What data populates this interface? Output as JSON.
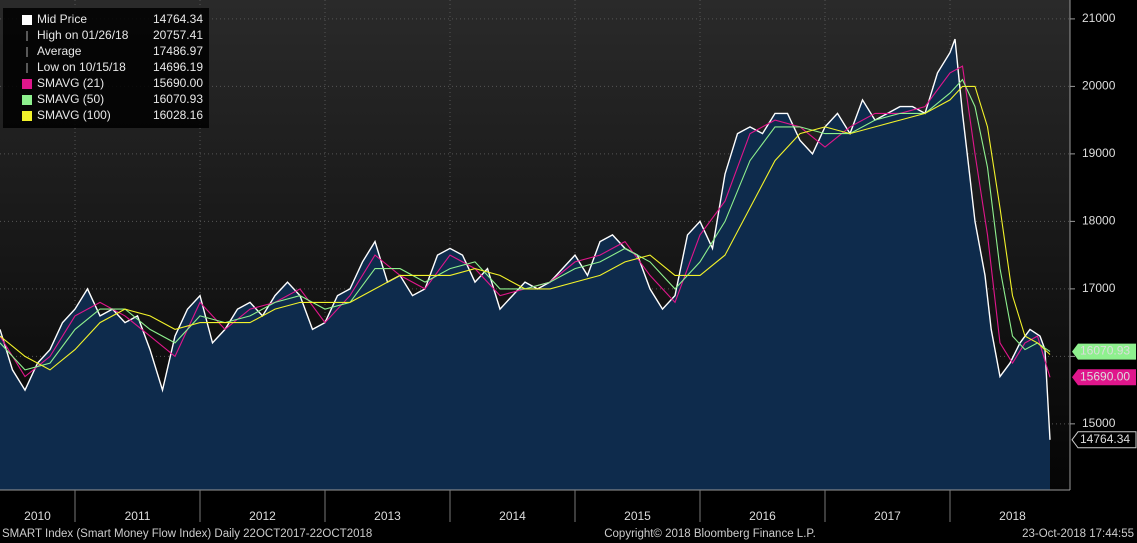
{
  "chart_data": {
    "type": "line",
    "legend": [
      {
        "label": "Mid Price",
        "value": "14764.34",
        "color": "#ffffff"
      },
      {
        "label": "High on 01/26/18",
        "value": "20757.41"
      },
      {
        "label": "Average",
        "value": "17486.97"
      },
      {
        "label": "Low on 10/15/18",
        "value": "14696.19"
      },
      {
        "label": "SMAVG (21)",
        "value": "15690.00",
        "color": "#e0168c"
      },
      {
        "label": "SMAVG (50)",
        "value": "16070.93",
        "color": "#8ef08e"
      },
      {
        "label": "SMAVG (100)",
        "value": "16028.16",
        "color": "#f2f22a"
      }
    ],
    "series": [
      {
        "name": "Mid Price",
        "color": "#ffffff",
        "area": "#0e2b4c",
        "x": [
          2010.4,
          2010.5,
          2010.6,
          2010.7,
          2010.8,
          2010.9,
          2011.0,
          2011.1,
          2011.2,
          2011.3,
          2011.4,
          2011.5,
          2011.6,
          2011.7,
          2011.8,
          2011.9,
          2012.0,
          2012.1,
          2012.2,
          2012.3,
          2012.4,
          2012.5,
          2012.6,
          2012.7,
          2012.8,
          2012.9,
          2013.0,
          2013.1,
          2013.2,
          2013.3,
          2013.4,
          2013.5,
          2013.6,
          2013.7,
          2013.8,
          2013.9,
          2014.0,
          2014.1,
          2014.2,
          2014.3,
          2014.4,
          2014.5,
          2014.6,
          2014.7,
          2014.8,
          2014.9,
          2015.0,
          2015.1,
          2015.2,
          2015.3,
          2015.4,
          2015.5,
          2015.6,
          2015.7,
          2015.8,
          2015.9,
          2016.0,
          2016.1,
          2016.2,
          2016.3,
          2016.4,
          2016.5,
          2016.6,
          2016.7,
          2016.8,
          2016.9,
          2017.0,
          2017.1,
          2017.2,
          2017.3,
          2017.4,
          2017.5,
          2017.6,
          2017.7,
          2017.8,
          2017.9,
          2018.0,
          2018.04,
          2018.1,
          2018.15,
          2018.2,
          2018.28,
          2018.33,
          2018.4,
          2018.48,
          2018.56,
          2018.64,
          2018.72,
          2018.76,
          2018.8
        ],
        "values": [
          16400,
          15800,
          15500,
          15900,
          16100,
          16500,
          16700,
          17000,
          16600,
          16700,
          16500,
          16600,
          16100,
          15500,
          16300,
          16700,
          16900,
          16200,
          16400,
          16700,
          16800,
          16600,
          16900,
          17100,
          16900,
          16400,
          16500,
          16900,
          17000,
          17400,
          17700,
          17100,
          17200,
          16900,
          17000,
          17500,
          17600,
          17500,
          17100,
          17300,
          16700,
          16900,
          17100,
          17000,
          17100,
          17300,
          17500,
          17200,
          17700,
          17800,
          17600,
          17500,
          17000,
          16700,
          16900,
          17800,
          18000,
          17600,
          18700,
          19300,
          19400,
          19300,
          19600,
          19600,
          19200,
          19000,
          19400,
          19600,
          19300,
          19800,
          19500,
          19600,
          19700,
          19700,
          19600,
          20200,
          20500,
          20700,
          19600,
          18800,
          18000,
          17200,
          16400,
          15700,
          15900,
          16200,
          16400,
          16300,
          16100,
          14764
        ]
      },
      {
        "name": "SMAVG (21)",
        "color": "#e0168c",
        "x": [
          2010.4,
          2010.6,
          2010.8,
          2011.0,
          2011.2,
          2011.4,
          2011.6,
          2011.8,
          2012.0,
          2012.2,
          2012.4,
          2012.6,
          2012.8,
          2013.0,
          2013.2,
          2013.4,
          2013.6,
          2013.8,
          2014.0,
          2014.2,
          2014.4,
          2014.6,
          2014.8,
          2015.0,
          2015.2,
          2015.4,
          2015.6,
          2015.8,
          2016.0,
          2016.2,
          2016.4,
          2016.6,
          2016.8,
          2017.0,
          2017.2,
          2017.4,
          2017.6,
          2017.8,
          2018.0,
          2018.1,
          2018.2,
          2018.3,
          2018.4,
          2018.5,
          2018.6,
          2018.7,
          2018.8
        ],
        "values": [
          16300,
          15700,
          16000,
          16600,
          16800,
          16600,
          16300,
          16000,
          16800,
          16400,
          16700,
          16800,
          17000,
          16500,
          16900,
          17500,
          17200,
          17000,
          17500,
          17300,
          16900,
          17000,
          17100,
          17400,
          17500,
          17700,
          17200,
          16800,
          17800,
          18300,
          19300,
          19500,
          19400,
          19100,
          19400,
          19600,
          19600,
          19700,
          20200,
          20300,
          19000,
          17800,
          16200,
          15900,
          16200,
          16300,
          15690
        ]
      },
      {
        "name": "SMAVG (50)",
        "color": "#8ef08e",
        "x": [
          2010.4,
          2010.6,
          2010.8,
          2011.0,
          2011.2,
          2011.4,
          2011.6,
          2011.8,
          2012.0,
          2012.2,
          2012.4,
          2012.6,
          2012.8,
          2013.0,
          2013.2,
          2013.4,
          2013.6,
          2013.8,
          2014.0,
          2014.2,
          2014.4,
          2014.6,
          2014.8,
          2015.0,
          2015.2,
          2015.4,
          2015.6,
          2015.8,
          2016.0,
          2016.2,
          2016.4,
          2016.6,
          2016.8,
          2017.0,
          2017.2,
          2017.4,
          2017.6,
          2017.8,
          2018.0,
          2018.1,
          2018.2,
          2018.3,
          2018.4,
          2018.5,
          2018.6,
          2018.7,
          2018.8
        ],
        "values": [
          16200,
          15800,
          15900,
          16400,
          16700,
          16700,
          16400,
          16200,
          16600,
          16500,
          16600,
          16800,
          16900,
          16700,
          16800,
          17300,
          17300,
          17100,
          17300,
          17400,
          17000,
          17000,
          17100,
          17300,
          17400,
          17600,
          17400,
          17000,
          17400,
          18000,
          18900,
          19400,
          19400,
          19300,
          19300,
          19500,
          19600,
          19600,
          19900,
          20100,
          19700,
          18800,
          17300,
          16300,
          16100,
          16200,
          16071
        ]
      },
      {
        "name": "SMAVG (100)",
        "color": "#f2f22a",
        "x": [
          2010.4,
          2010.6,
          2010.8,
          2011.0,
          2011.2,
          2011.4,
          2011.6,
          2011.8,
          2012.0,
          2012.2,
          2012.4,
          2012.6,
          2012.8,
          2013.0,
          2013.2,
          2013.4,
          2013.6,
          2013.8,
          2014.0,
          2014.2,
          2014.4,
          2014.6,
          2014.8,
          2015.0,
          2015.2,
          2015.4,
          2015.6,
          2015.8,
          2016.0,
          2016.2,
          2016.4,
          2016.6,
          2016.8,
          2017.0,
          2017.2,
          2017.4,
          2017.6,
          2017.8,
          2018.0,
          2018.1,
          2018.2,
          2018.3,
          2018.4,
          2018.5,
          2018.6,
          2018.7,
          2018.8
        ],
        "values": [
          16300,
          16000,
          15800,
          16100,
          16500,
          16700,
          16600,
          16400,
          16500,
          16500,
          16500,
          16700,
          16800,
          16800,
          16800,
          17000,
          17200,
          17200,
          17200,
          17300,
          17200,
          17000,
          17000,
          17100,
          17200,
          17400,
          17500,
          17200,
          17200,
          17500,
          18200,
          18900,
          19300,
          19400,
          19300,
          19400,
          19500,
          19600,
          19800,
          20000,
          20000,
          19400,
          18200,
          16900,
          16300,
          16200,
          16028
        ]
      }
    ],
    "xlim": [
      2010.4,
      2018.96
    ],
    "xticks": [
      2011,
      2012,
      2013,
      2014,
      2015,
      2016,
      2017,
      2018
    ],
    "xtick_labels": [
      {
        "value": 2010.7,
        "label": "2010"
      },
      {
        "value": 2011.5,
        "label": "2011"
      },
      {
        "value": 2012.5,
        "label": "2012"
      },
      {
        "value": 2013.5,
        "label": "2013"
      },
      {
        "value": 2014.5,
        "label": "2014"
      },
      {
        "value": 2015.5,
        "label": "2015"
      },
      {
        "value": 2016.5,
        "label": "2016"
      },
      {
        "value": 2017.5,
        "label": "2017"
      },
      {
        "value": 2018.5,
        "label": "2018"
      }
    ],
    "ylim": [
      14020,
      21280
    ],
    "yticks": [
      15000,
      16000,
      17000,
      18000,
      19000,
      20000,
      21000
    ],
    "ytick_labels_shown": [
      15000,
      17000,
      18000,
      19000,
      20000,
      21000
    ],
    "grid": true,
    "footer": {
      "left": "SMART Index (Smart Money Flow Index)  Daily 22OCT2017-22OCT2018",
      "center": "Copyright© 2018 Bloomberg Finance L.P.",
      "right": "23-Oct-2018 17:44:55"
    }
  }
}
